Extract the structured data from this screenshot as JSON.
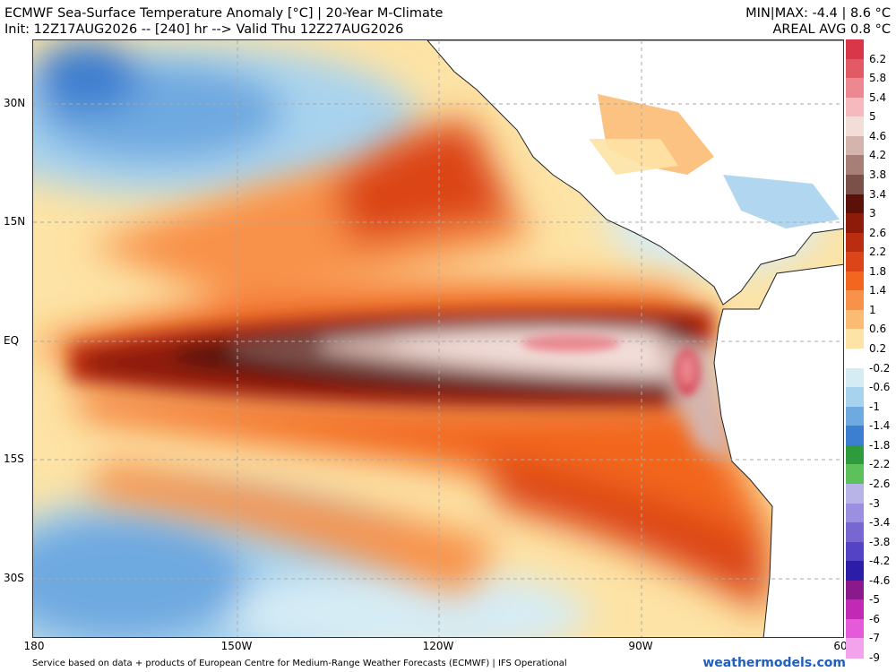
{
  "header": {
    "title_line1": "ECMWF Sea-Surface Temperature Anomaly [°C] | 20-Year M-Climate",
    "title_line2": "Init: 12Z17AUG2026 -- [240] hr --> Valid Thu 12Z27AUG2026",
    "stats_line1": "MIN|MAX: -4.4 | 8.6 °C",
    "stats_line2": "AREAL AVG 0.8 °C"
  },
  "axes": {
    "lat_labels": [
      "30N",
      "15N",
      "EQ",
      "15S",
      "30S"
    ],
    "lon_labels": [
      "180",
      "150W",
      "120W",
      "90W",
      "60"
    ]
  },
  "colorbar": {
    "labels": [
      "6.2",
      "5.8",
      "5.4",
      "5",
      "4.6",
      "4.2",
      "3.8",
      "3.4",
      "3",
      "2.6",
      "2.2",
      "1.8",
      "1.4",
      "1",
      "0.6",
      "0.2",
      "-0.2",
      "-0.6",
      "-1",
      "-1.4",
      "-1.8",
      "-2.2",
      "-2.6",
      "-3",
      "-3.4",
      "-3.8",
      "-4.2",
      "-4.6",
      "-5",
      "-6",
      "-7",
      "-9"
    ],
    "colors": [
      "#d9364a",
      "#e25a66",
      "#ec8892",
      "#f5b9be",
      "#f2ddd8",
      "#d4b5ae",
      "#a87f76",
      "#7b5048",
      "#5a1208",
      "#8e1b0a",
      "#bb2d0f",
      "#dc4517",
      "#f2661f",
      "#f8914a",
      "#fbbb73",
      "#fde3a5",
      "#ffffff",
      "#d6ecf5",
      "#a8d3ee",
      "#6ea9e0",
      "#3c7ed0",
      "#2e9b3c",
      "#5cc15a",
      "#b9b4e8",
      "#9a8fe0",
      "#7867d3",
      "#5443c4",
      "#2c1da8",
      "#8a1a8c",
      "#c229b4",
      "#e45ad9",
      "#f3a3ec"
    ]
  },
  "footer": {
    "credit": "Service based on data + products of European Centre for Medium-Range Weather Forecasts (ECMWF) | IFS Operational",
    "brand": "weathermodels.com"
  }
}
